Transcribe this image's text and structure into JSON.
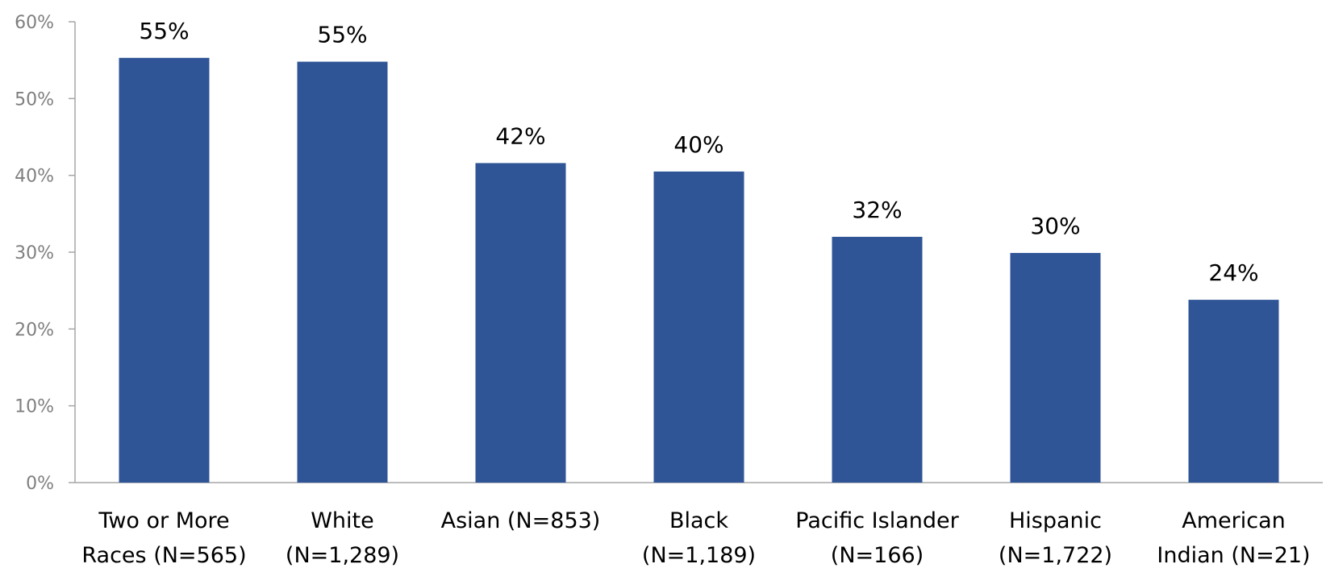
{
  "chart_data": {
    "type": "bar",
    "categories": [
      [
        "Two or More",
        "Races (N=565)"
      ],
      [
        "White",
        "(N=1,289)"
      ],
      [
        "Asian (N=853)"
      ],
      [
        "Black",
        "(N=1,189)"
      ],
      [
        "Pacific Islander",
        "(N=166)"
      ],
      [
        "Hispanic",
        "(N=1,722)"
      ],
      [
        "American",
        "Indian (N=21)"
      ]
    ],
    "values": [
      55.3,
      54.8,
      41.6,
      40.5,
      32.0,
      29.9,
      23.8
    ],
    "data_labels": [
      "55%",
      "55%",
      "42%",
      "40%",
      "32%",
      "30%",
      "24%"
    ],
    "title": "",
    "xlabel": "",
    "ylabel": "",
    "ylim": [
      0,
      60
    ],
    "yticks": [
      0,
      10,
      20,
      30,
      40,
      50,
      60
    ],
    "ytick_labels": [
      "0%",
      "10%",
      "20%",
      "30%",
      "40%",
      "50%",
      "60%"
    ],
    "grid": false,
    "legend": "none",
    "colors": {
      "bar": "#2F5597",
      "axis": "#A6A6A6",
      "tick_text": "#7F7F7F",
      "label_text": "#000000"
    }
  }
}
